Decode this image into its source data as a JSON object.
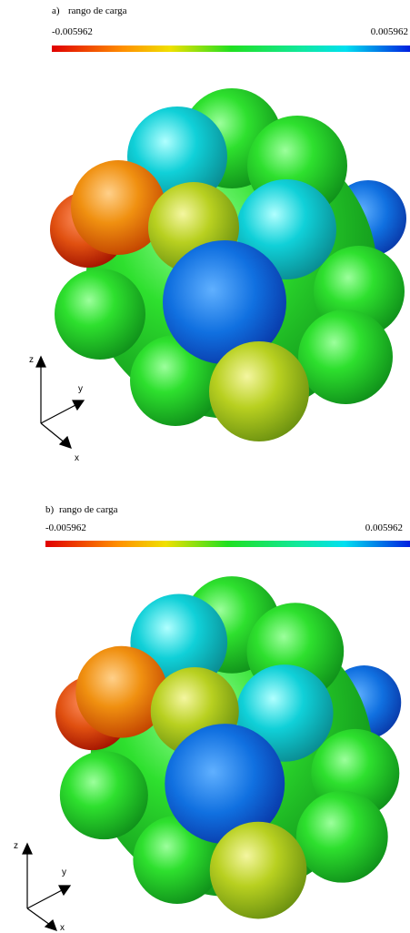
{
  "panels": [
    {
      "label": "a)",
      "title": "rango de carga",
      "min_label": "-0.005962",
      "max_label": "0.005962",
      "axes": [
        "z",
        "y",
        "x"
      ]
    },
    {
      "label": "b)",
      "title": "rango de carga",
      "min_label": "-0.005962",
      "max_label": "0.005962",
      "axes": [
        "z",
        "y",
        "x"
      ]
    }
  ]
}
